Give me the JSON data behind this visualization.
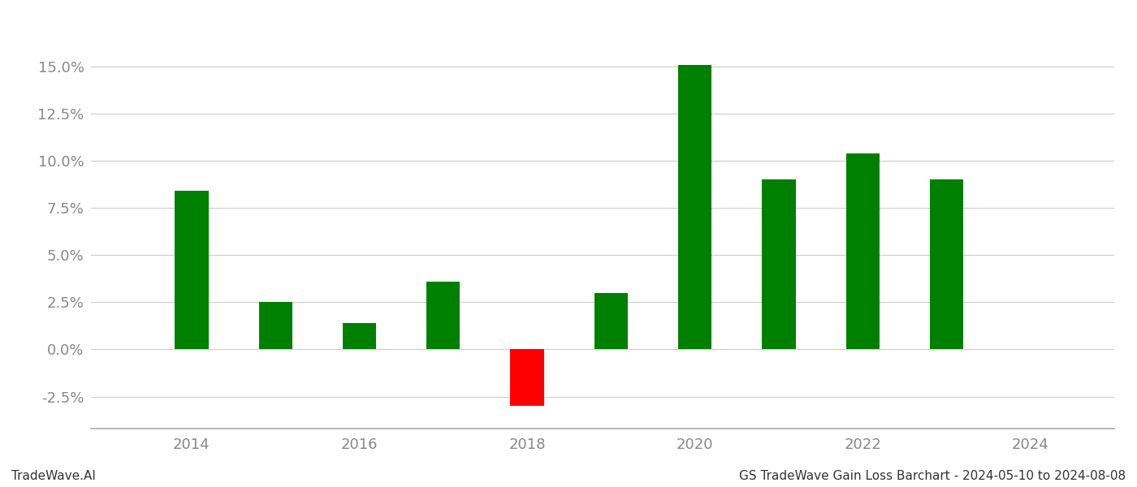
{
  "years": [
    2014,
    2015,
    2016,
    2017,
    2018,
    2019,
    2020,
    2021,
    2022,
    2023
  ],
  "values": [
    0.084,
    0.025,
    0.014,
    0.036,
    -0.03,
    0.03,
    0.151,
    0.09,
    0.104,
    0.09
  ],
  "colors": [
    "#008000",
    "#008000",
    "#008000",
    "#008000",
    "#ff0000",
    "#008000",
    "#008000",
    "#008000",
    "#008000",
    "#008000"
  ],
  "ylim": [
    -0.042,
    0.175
  ],
  "yticks": [
    -0.025,
    0.0,
    0.025,
    0.05,
    0.075,
    0.1,
    0.125,
    0.15
  ],
  "xticks": [
    2014,
    2016,
    2018,
    2020,
    2022,
    2024
  ],
  "footer_left": "TradeWave.AI",
  "footer_right": "GS TradeWave Gain Loss Barchart - 2024-05-10 to 2024-08-08",
  "background_color": "#ffffff",
  "grid_color": "#cccccc",
  "bar_width": 0.4,
  "spine_color": "#aaaaaa",
  "text_color": "#888888",
  "footer_fontsize": 11,
  "tick_fontsize": 13,
  "xlim_left": 2012.8,
  "xlim_right": 2025.0
}
